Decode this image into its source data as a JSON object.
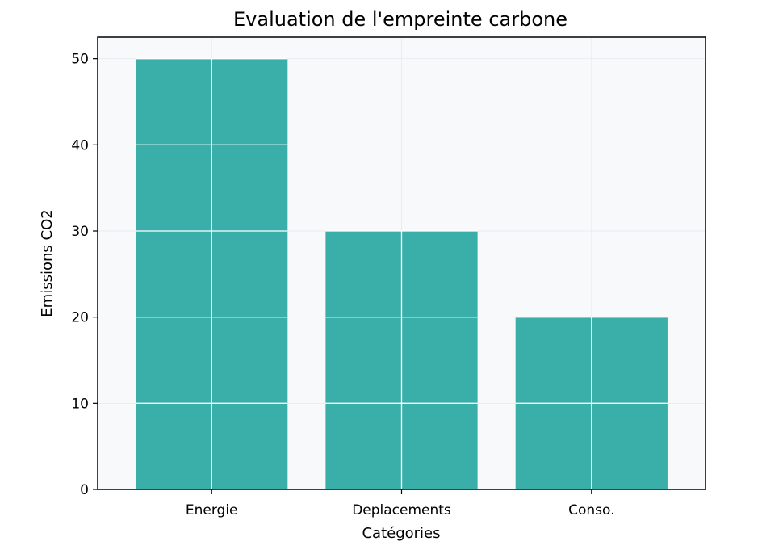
{
  "chart_data": {
    "type": "bar",
    "title": "Evaluation de l'empreinte carbone",
    "xlabel": "Catégories",
    "ylabel": "Emissions CO2",
    "categories": [
      "Energie",
      "Deplacements",
      "Conso."
    ],
    "values": [
      50,
      30,
      20
    ],
    "ylim": [
      0,
      52.5
    ],
    "yticks": [
      0,
      10,
      20,
      30,
      40,
      50
    ],
    "grid": true,
    "legend": "none",
    "colors": {
      "bar": "#3aafa9",
      "plot_background": "#f7f9fb",
      "grid_light": "#e9edf2",
      "grid_on_bar": "#ffffff",
      "axis": "#000000"
    }
  }
}
